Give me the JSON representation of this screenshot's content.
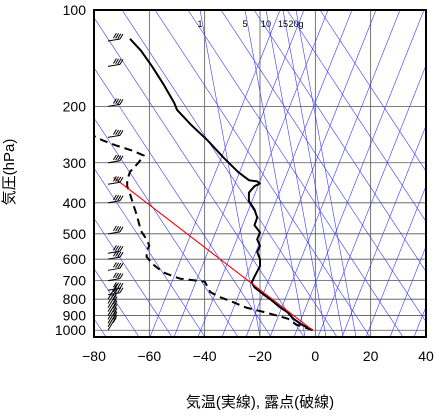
{
  "chart_data": {
    "type": "line",
    "title": "",
    "xlabel": "気温(実線), 露点(破線)",
    "ylabel": "気圧(hPa)",
    "xlim": [
      -80,
      40
    ],
    "ylim": [
      1050,
      100
    ],
    "y_scale": "log",
    "grid": true,
    "x_ticks": [
      -80,
      -60,
      -40,
      -20,
      0,
      20,
      40
    ],
    "x_tick_labels": [
      "−80",
      "−60",
      "−40",
      "−20",
      "0",
      "20",
      "40"
    ],
    "y_ticks": [
      100,
      200,
      300,
      400,
      500,
      600,
      700,
      800,
      900,
      1000
    ],
    "y_tick_labels": [
      "100",
      "200",
      "300",
      "400",
      "500",
      "600",
      "700",
      "800",
      "900",
      "1000"
    ],
    "mixing_ratio_labels": [
      "1",
      "5",
      "10",
      "15",
      "20g"
    ],
    "series": [
      {
        "style": "solid",
        "color": "#000000",
        "points": [
          [
            -1,
            1000
          ],
          [
            -5,
            960
          ],
          [
            -8,
            920
          ],
          [
            -10,
            880
          ],
          [
            -13,
            845
          ],
          [
            -16,
            805
          ],
          [
            -19,
            770
          ],
          [
            -22,
            735
          ],
          [
            -23,
            710
          ],
          [
            -22,
            680
          ],
          [
            -21,
            655
          ],
          [
            -20,
            630
          ],
          [
            -20,
            600
          ],
          [
            -21,
            570
          ],
          [
            -20,
            545
          ],
          [
            -21,
            520
          ],
          [
            -20,
            495
          ],
          [
            -22,
            470
          ],
          [
            -21,
            445
          ],
          [
            -22,
            420
          ],
          [
            -24,
            395
          ],
          [
            -24,
            372
          ],
          [
            -22,
            355
          ],
          [
            -20,
            348
          ],
          [
            -21,
            343
          ],
          [
            -24,
            340
          ],
          [
            -28,
            320
          ],
          [
            -33,
            290
          ],
          [
            -39,
            255
          ],
          [
            -45,
            228
          ],
          [
            -50,
            205
          ],
          [
            -51,
            195
          ],
          [
            -55,
            170
          ],
          [
            -59,
            150
          ],
          [
            -63,
            134
          ],
          [
            -67,
            123
          ]
        ]
      },
      {
        "style": "dashed",
        "color": "#000000",
        "points": [
          [
            -1,
            1000
          ],
          [
            -7,
            960
          ],
          [
            -10,
            920
          ],
          [
            -18,
            880
          ],
          [
            -25,
            850
          ],
          [
            -30,
            815
          ],
          [
            -35,
            785
          ],
          [
            -38,
            760
          ],
          [
            -39,
            730
          ],
          [
            -40,
            705
          ],
          [
            -49,
            690
          ],
          [
            -55,
            660
          ],
          [
            -59,
            620
          ],
          [
            -61,
            590
          ],
          [
            -61,
            565
          ],
          [
            -60,
            545
          ],
          [
            -61,
            520
          ],
          [
            -63,
            490
          ],
          [
            -64,
            455
          ],
          [
            -65,
            425
          ],
          [
            -66,
            400
          ],
          [
            -67,
            375
          ],
          [
            -68,
            355
          ],
          [
            -68,
            340
          ],
          [
            -67,
            320
          ],
          [
            -64,
            300
          ],
          [
            -62,
            285
          ],
          [
            -66,
            275
          ],
          [
            -72,
            265
          ],
          [
            -77,
            255
          ],
          [
            -81,
            245
          ]
        ]
      },
      {
        "style": "solid",
        "color": "#ff0000",
        "points": [
          [
            -1,
            1000
          ],
          [
            -73,
            333
          ]
        ]
      }
    ],
    "wind_barb_levels": [
      1000,
      975,
      950,
      925,
      900,
      875,
      850,
      825,
      800,
      775,
      750,
      700,
      650,
      600,
      575,
      500,
      400,
      350,
      300,
      250,
      200,
      150,
      125
    ]
  }
}
